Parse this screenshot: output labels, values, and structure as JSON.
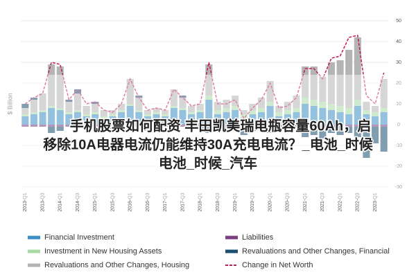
{
  "chart_data": {
    "type": "bar",
    "stacked": true,
    "y_label": "$ Billion",
    "categories": [
      "2013-Q1",
      null,
      "2013-Q3",
      null,
      "2014-Q1",
      null,
      "2014-Q3",
      null,
      "2015-Q1",
      null,
      "2015-Q3",
      null,
      "2016-Q1",
      null,
      "2016-Q3",
      null,
      "2017-Q1",
      null,
      "2017-Q3",
      null,
      "2018-Q1",
      null,
      "2018-Q3",
      null,
      "2019-Q1",
      null,
      "2019-Q3",
      null,
      "2020-Q1",
      null,
      "2020-Q3",
      null,
      "2021-Q1",
      null,
      "2021-Q3",
      null,
      "2022-Q1",
      null,
      "2022-Q3",
      null,
      "2023-Q1",
      null
    ],
    "series": [
      {
        "name": "Financial Investment",
        "color": "#3b8fc4",
        "values": [
          4,
          5,
          6,
          8,
          7,
          5,
          6,
          4,
          5,
          3,
          4,
          6,
          9,
          6,
          4,
          5,
          4,
          8,
          7,
          5,
          6,
          12,
          5,
          6,
          7,
          3,
          5,
          6,
          9,
          4,
          5,
          6,
          10,
          9,
          8,
          7,
          6,
          5,
          9,
          5,
          4,
          6
        ]
      },
      {
        "name": "Investment in New Housing Assets",
        "color": "#a9d9a4",
        "values": [
          1,
          1,
          1,
          1,
          1,
          1,
          1,
          1,
          1,
          1,
          1,
          1,
          1,
          1,
          1,
          1,
          1,
          1,
          1,
          1,
          1,
          2,
          2,
          2,
          2,
          2,
          2,
          2,
          2,
          2,
          2,
          2,
          3,
          3,
          3,
          3,
          3,
          3,
          3,
          2,
          2,
          2
        ]
      },
      {
        "name": "Revaluations and Other Changes, Housing",
        "color": "#b4b4b4",
        "values": [
          3,
          6,
          8,
          20,
          20,
          5,
          8,
          4,
          4,
          3,
          2,
          3,
          12,
          6,
          2,
          2,
          2,
          8,
          5,
          3,
          3,
          15,
          4,
          4,
          5,
          2,
          3,
          5,
          10,
          3,
          4,
          6,
          15,
          16,
          12,
          20,
          22,
          28,
          30,
          4,
          3,
          14
        ]
      },
      {
        "name": "Liabilities",
        "color": "#7b3f7f",
        "values": [
          -1,
          -1,
          -1,
          -1,
          -1,
          -1,
          -1,
          -1,
          -1,
          -1,
          -1,
          -1,
          -1,
          -1,
          -1,
          -1,
          -1,
          -1,
          -1,
          -1,
          -1,
          -1,
          -1,
          -1,
          -1,
          -1,
          -1,
          -1,
          -1,
          -1,
          -1,
          -1,
          -1,
          -1,
          -1,
          -1,
          -1,
          -1,
          -1,
          -1,
          -1,
          -1
        ]
      },
      {
        "name": "Revaluations and Other Changes, Financial",
        "color": "#1b4f72",
        "values": [
          2,
          1,
          0,
          -3,
          -2,
          1,
          2,
          0,
          1,
          -2,
          -1,
          0,
          -1,
          1,
          -2,
          -1,
          0,
          -2,
          1,
          0,
          -1,
          -3,
          -1,
          -2,
          -1,
          -4,
          -2,
          -1,
          -3,
          -1,
          -2,
          -1,
          -5,
          -4,
          -6,
          -3,
          -4,
          -3,
          -5,
          -15,
          -8,
          -12
        ]
      },
      {
        "name": "Change in Net Worth",
        "color": "#c2185b",
        "type": "line",
        "dashed": true,
        "values": [
          10,
          13,
          15,
          30,
          29,
          12,
          17,
          10,
          11,
          7,
          6,
          10,
          22,
          13,
          7,
          8,
          7,
          17,
          13,
          9,
          10,
          30,
          10,
          10,
          12,
          3,
          8,
          12,
          20,
          8,
          9,
          13,
          27,
          27,
          22,
          32,
          33,
          42,
          43,
          14,
          10,
          25
        ]
      }
    ],
    "ylim": [
      -30,
      50
    ],
    "yticks": [
      -30,
      -20,
      -10,
      0,
      10,
      20,
      30,
      40,
      50
    ],
    "grid": true
  },
  "overlay": {
    "lines": [
      "手机股票如何配资 丰田凯美瑞电瓶容量60Ah，启",
      "移除10A电器电流仍能维持30A充电电流？_电池_时候",
      "电池_时候_汽车"
    ]
  }
}
